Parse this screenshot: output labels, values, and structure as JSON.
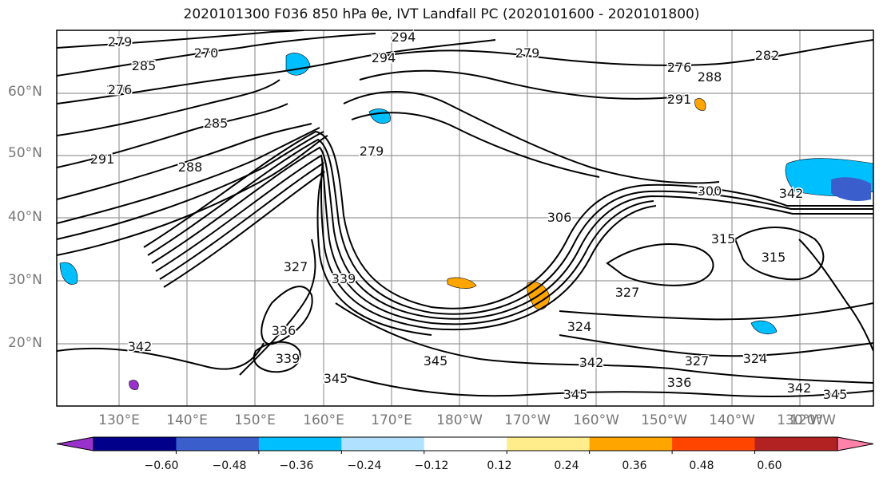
{
  "title": "2020101300 F036 850 hPa θe, IVT Landfall PC (2020101600 - 2020101800)",
  "lat_labels": [
    "60°N",
    "50°N",
    "40°N",
    "30°N",
    "20°N"
  ],
  "lon_labels": [
    "130°E",
    "140°E",
    "150°E",
    "160°E",
    "170°E",
    "180°W",
    "170°W",
    "160°W",
    "150°W",
    "140°W",
    "130°W",
    "120°W"
  ],
  "contour_labels": [
    "279",
    "294",
    "279",
    "276",
    "285",
    "270",
    "276",
    "291",
    "276",
    "288",
    "285",
    "291",
    "279",
    "282",
    "294",
    "288",
    "300",
    "306",
    "315",
    "315",
    "327",
    "324",
    "327",
    "339",
    "345",
    "336",
    "339",
    "345",
    "342",
    "342",
    "345",
    "336",
    "342",
    "324",
    "327",
    "342",
    "345"
  ],
  "colorbar": {
    "ticks": [
      "−0.60",
      "−0.48",
      "−0.36",
      "−0.24",
      "−0.12",
      "0.12",
      "0.24",
      "0.36",
      "0.48",
      "0.60"
    ],
    "colors": [
      "#9932cc",
      "#00008b",
      "#3a5fcd",
      "#00bfff",
      "#b0e2ff",
      "#ffffff",
      "#ffec8b",
      "#ffa500",
      "#ff4500",
      "#b22222",
      "#ff82ab"
    ]
  }
}
